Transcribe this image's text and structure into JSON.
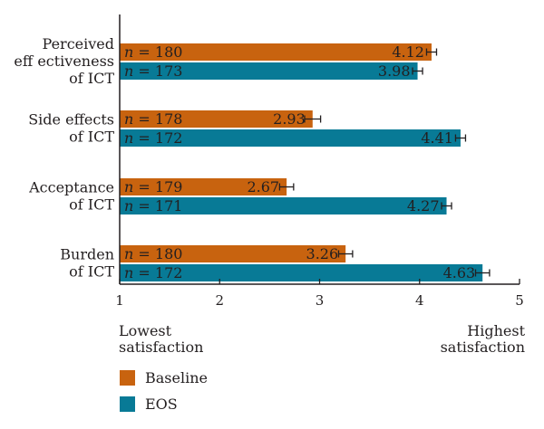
{
  "chart_data": {
    "type": "bar",
    "orientation": "horizontal",
    "categories": [
      [
        "Perceived",
        "eff ectiveness",
        "of ICT"
      ],
      [
        "Side effects",
        "of ICT"
      ],
      [
        "Acceptance",
        "of ICT"
      ],
      [
        "Burden",
        "of ICT"
      ]
    ],
    "series": [
      {
        "name": "Baseline",
        "color": "#c8630f",
        "values": [
          4.12,
          2.93,
          2.67,
          3.26
        ],
        "errors": [
          0.05,
          0.08,
          0.07,
          0.07
        ],
        "n": [
          180,
          178,
          179,
          180
        ]
      },
      {
        "name": "EOS",
        "color": "#087a96",
        "values": [
          3.98,
          4.41,
          4.27,
          4.63
        ],
        "errors": [
          0.05,
          0.05,
          0.05,
          0.07
        ],
        "n": [
          173,
          172,
          171,
          172
        ]
      }
    ],
    "xlim": [
      1,
      5
    ],
    "xticks": [
      1,
      2,
      3,
      4,
      5
    ],
    "n_prefix": "n",
    "n_equals": " = ",
    "axis_low_label": [
      "Lowest",
      "satisfaction"
    ],
    "axis_high_label": [
      "Highest",
      "satisfaction"
    ],
    "legend_position": "bottom-left",
    "grid": false
  }
}
